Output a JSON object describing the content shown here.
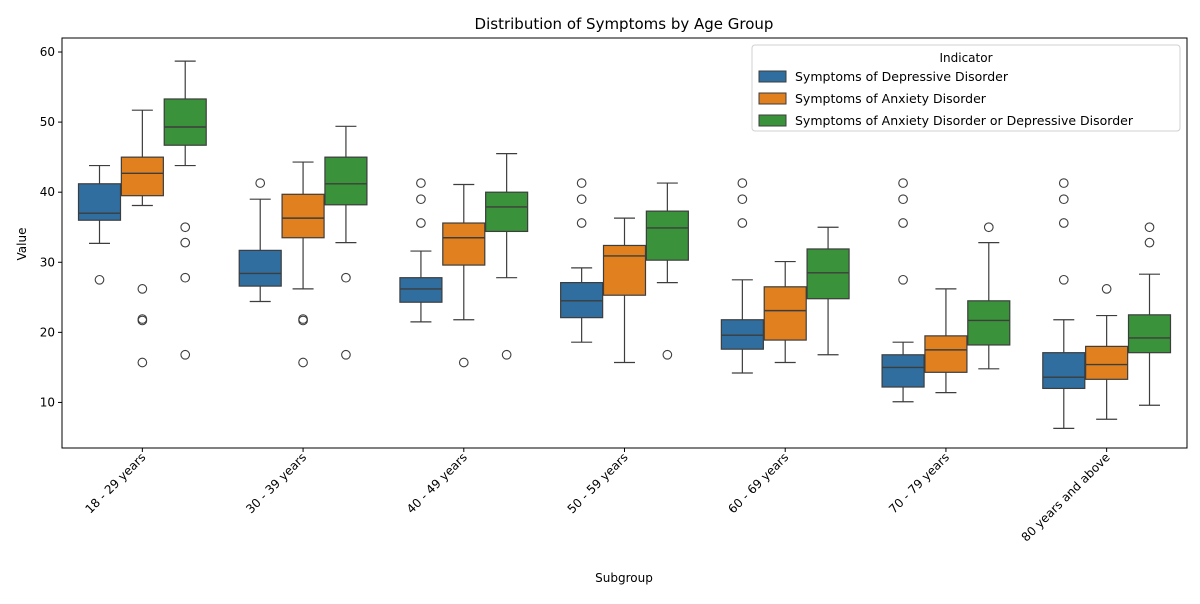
{
  "chart_data": {
    "type": "box",
    "title": "Distribution of Symptoms by Age Group",
    "xlabel": "Subgroup",
    "ylabel": "Value",
    "ylim": [
      3.5,
      62
    ],
    "yticks": [
      10,
      20,
      30,
      40,
      50,
      60
    ],
    "grid": false,
    "categories": [
      "18 - 29 years",
      "30 - 39 years",
      "40 - 49 years",
      "50 - 59 years",
      "60 - 69 years",
      "70 - 79 years",
      "80 years and above"
    ],
    "legend": {
      "title": "Indicator",
      "position": "top-right"
    },
    "series": [
      {
        "name": "Symptoms of Depressive Disorder",
        "color": "#2f6e9f",
        "boxes": [
          {
            "whislo": 32.7,
            "q1": 36.0,
            "med": 37.0,
            "q3": 41.2,
            "whishi": 43.8,
            "fliers": [
              27.5
            ]
          },
          {
            "whislo": 24.4,
            "q1": 26.6,
            "med": 28.4,
            "q3": 31.7,
            "whishi": 39.0,
            "fliers": [
              41.3
            ]
          },
          {
            "whislo": 21.5,
            "q1": 24.3,
            "med": 26.2,
            "q3": 27.8,
            "whishi": 31.6,
            "fliers": [
              35.6,
              39.0,
              41.3
            ]
          },
          {
            "whislo": 18.6,
            "q1": 22.1,
            "med": 24.5,
            "q3": 27.1,
            "whishi": 29.2,
            "fliers": [
              35.6,
              39.0,
              41.3
            ]
          },
          {
            "whislo": 14.2,
            "q1": 17.6,
            "med": 19.6,
            "q3": 21.8,
            "whishi": 27.5,
            "fliers": [
              35.6,
              39.0,
              41.3
            ]
          },
          {
            "whislo": 10.1,
            "q1": 12.2,
            "med": 15.0,
            "q3": 16.8,
            "whishi": 18.6,
            "fliers": [
              27.5,
              35.6,
              39.0,
              41.3
            ]
          },
          {
            "whislo": 6.3,
            "q1": 12.0,
            "med": 13.6,
            "q3": 17.1,
            "whishi": 21.8,
            "fliers": [
              27.5,
              35.6,
              39.0,
              41.3
            ]
          }
        ]
      },
      {
        "name": "Symptoms of Anxiety Disorder",
        "color": "#e0801f",
        "boxes": [
          {
            "whislo": 38.1,
            "q1": 39.5,
            "med": 42.7,
            "q3": 45.0,
            "whishi": 51.7,
            "fliers": [
              15.7,
              21.7,
              21.9,
              26.2
            ]
          },
          {
            "whislo": 26.2,
            "q1": 33.5,
            "med": 36.3,
            "q3": 39.7,
            "whishi": 44.3,
            "fliers": [
              15.7,
              21.7,
              21.9
            ]
          },
          {
            "whislo": 21.8,
            "q1": 29.6,
            "med": 33.5,
            "q3": 35.6,
            "whishi": 41.1,
            "fliers": [
              15.7
            ]
          },
          {
            "whislo": 15.7,
            "q1": 25.3,
            "med": 30.9,
            "q3": 32.4,
            "whishi": 36.3,
            "fliers": []
          },
          {
            "whislo": 15.7,
            "q1": 18.9,
            "med": 23.1,
            "q3": 26.5,
            "whishi": 30.1,
            "fliers": []
          },
          {
            "whislo": 11.4,
            "q1": 14.3,
            "med": 17.5,
            "q3": 19.5,
            "whishi": 26.2,
            "fliers": []
          },
          {
            "whislo": 7.6,
            "q1": 13.3,
            "med": 15.4,
            "q3": 18.0,
            "whishi": 22.4,
            "fliers": [
              26.2
            ]
          }
        ]
      },
      {
        "name": "Symptoms of Anxiety Disorder or Depressive Disorder",
        "color": "#3a923a",
        "boxes": [
          {
            "whislo": 43.8,
            "q1": 46.7,
            "med": 49.3,
            "q3": 53.3,
            "whishi": 58.7,
            "fliers": [
              16.8,
              27.8,
              32.8,
              35.0
            ]
          },
          {
            "whislo": 32.8,
            "q1": 38.2,
            "med": 41.2,
            "q3": 45.0,
            "whishi": 49.4,
            "fliers": [
              16.8,
              27.8
            ]
          },
          {
            "whislo": 27.8,
            "q1": 34.4,
            "med": 37.9,
            "q3": 40.0,
            "whishi": 45.5,
            "fliers": [
              16.8
            ]
          },
          {
            "whislo": 27.1,
            "q1": 30.3,
            "med": 34.9,
            "q3": 37.3,
            "whishi": 41.3,
            "fliers": [
              16.8
            ]
          },
          {
            "whislo": 16.8,
            "q1": 24.8,
            "med": 28.5,
            "q3": 31.9,
            "whishi": 35.0,
            "fliers": []
          },
          {
            "whislo": 14.8,
            "q1": 18.2,
            "med": 21.7,
            "q3": 24.5,
            "whishi": 32.8,
            "fliers": [
              35.0
            ]
          },
          {
            "whislo": 9.6,
            "q1": 17.1,
            "med": 19.2,
            "q3": 22.5,
            "whishi": 28.3,
            "fliers": [
              32.8,
              35.0
            ]
          }
        ]
      }
    ]
  }
}
